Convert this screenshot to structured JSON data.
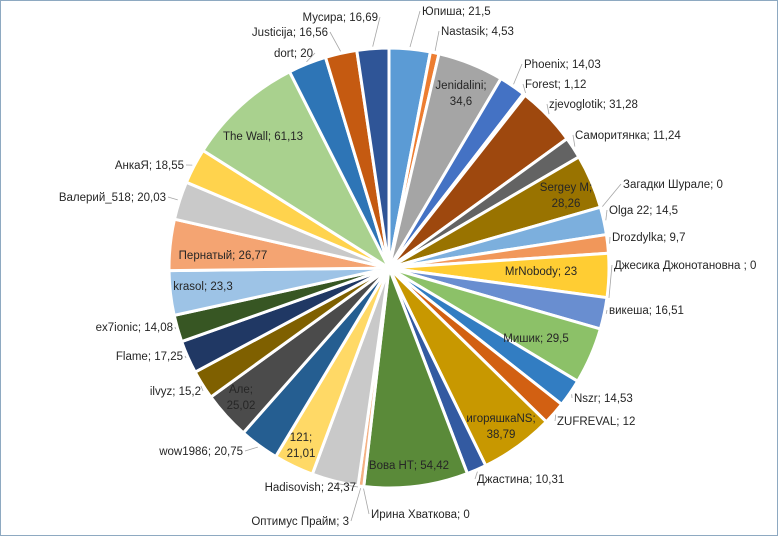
{
  "chart_data": {
    "type": "pie",
    "title": "",
    "start": "12 o'clock, clockwise",
    "slices": [
      {
        "name": "Юпиша",
        "value": 21.5,
        "color": "#5B9BD5"
      },
      {
        "name": "Nastasik",
        "value": 4.53,
        "color": "#ED7D31"
      },
      {
        "name": "Jenidalini",
        "value": 34.6,
        "color": "#A5A5A5"
      },
      {
        "name": "Phoenix",
        "value": 14.03,
        "color": "#4472C4"
      },
      {
        "name": "Forest",
        "value": 1.12,
        "color": "#70AD47"
      },
      {
        "name": "zjevoglotik",
        "value": 31.28,
        "color": "#9E480E"
      },
      {
        "name": "Саморитянка",
        "value": 11.24,
        "color": "#636363"
      },
      {
        "name": "Sergey M",
        "value": 28.26,
        "color": "#997300"
      },
      {
        "name": "Загадки Шурале",
        "value": 0,
        "color": "#264478"
      },
      {
        "name": "Olga 22",
        "value": 14.5,
        "color": "#7CAFDD"
      },
      {
        "name": "Drozdylka",
        "value": 9.7,
        "color": "#F1975A"
      },
      {
        "name": "MrNobody",
        "value": 23,
        "color": "#FFCD33"
      },
      {
        "name": "Джесика Джонотановна ",
        "value": 0,
        "color": "#B7B7B7"
      },
      {
        "name": "викеша",
        "value": 16.51,
        "color": "#698ED0"
      },
      {
        "name": "Мишик",
        "value": 29.5,
        "color": "#8CC168"
      },
      {
        "name": "Nszr",
        "value": 14.53,
        "color": "#327DC2"
      },
      {
        "name": "ZUFREVAL",
        "value": 12,
        "color": "#D26012"
      },
      {
        "name": "игоряшкаNS",
        "value": 38.79,
        "color": "#C89800"
      },
      {
        "name": "Джастина",
        "value": 10.31,
        "color": "#335AA1"
      },
      {
        "name": "Вова НТ",
        "value": 54.42,
        "color": "#5A8A39"
      },
      {
        "name": "Ирина Хваткова",
        "value": 0,
        "color": "#848484"
      },
      {
        "name": "Оптимус Прайм",
        "value": 3,
        "color": "#F4B183"
      },
      {
        "name": "Hadisovish",
        "value": 24.37,
        "color": "#C9C9C9"
      },
      {
        "name": "121",
        "value": 21.01,
        "color": "#FFD966"
      },
      {
        "name": "wow1986",
        "value": 20.75,
        "color": "#255E91"
      },
      {
        "name": "Але",
        "value": 25.02,
        "color": "#4B4B4B"
      },
      {
        "name": "ilvyz",
        "value": 15.2,
        "color": "#7F6000"
      },
      {
        "name": "Flame",
        "value": 17.25,
        "color": "#203864"
      },
      {
        "name": "ex7ionic",
        "value": 14.08,
        "color": "#375623"
      },
      {
        "name": "krasol",
        "value": 23.3,
        "color": "#9DC3E6"
      },
      {
        "name": "Пернатый",
        "value": 26.77,
        "color": "#F4A472"
      },
      {
        "name": "Валерий_518",
        "value": 20.03,
        "color": "#C9C9C9"
      },
      {
        "name": "АнкаЯ",
        "value": 18.55,
        "color": "#FFD34D"
      },
      {
        "name": "The Wall",
        "value": 61.13,
        "color": "#A9D18E"
      },
      {
        "name": "dort",
        "value": 20,
        "color": "#2E75B6"
      },
      {
        "name": "Justicija",
        "value": 16.56,
        "color": "#C55A11"
      },
      {
        "name": "Мусира",
        "value": 16.69,
        "color": "#2F5597"
      }
    ]
  }
}
